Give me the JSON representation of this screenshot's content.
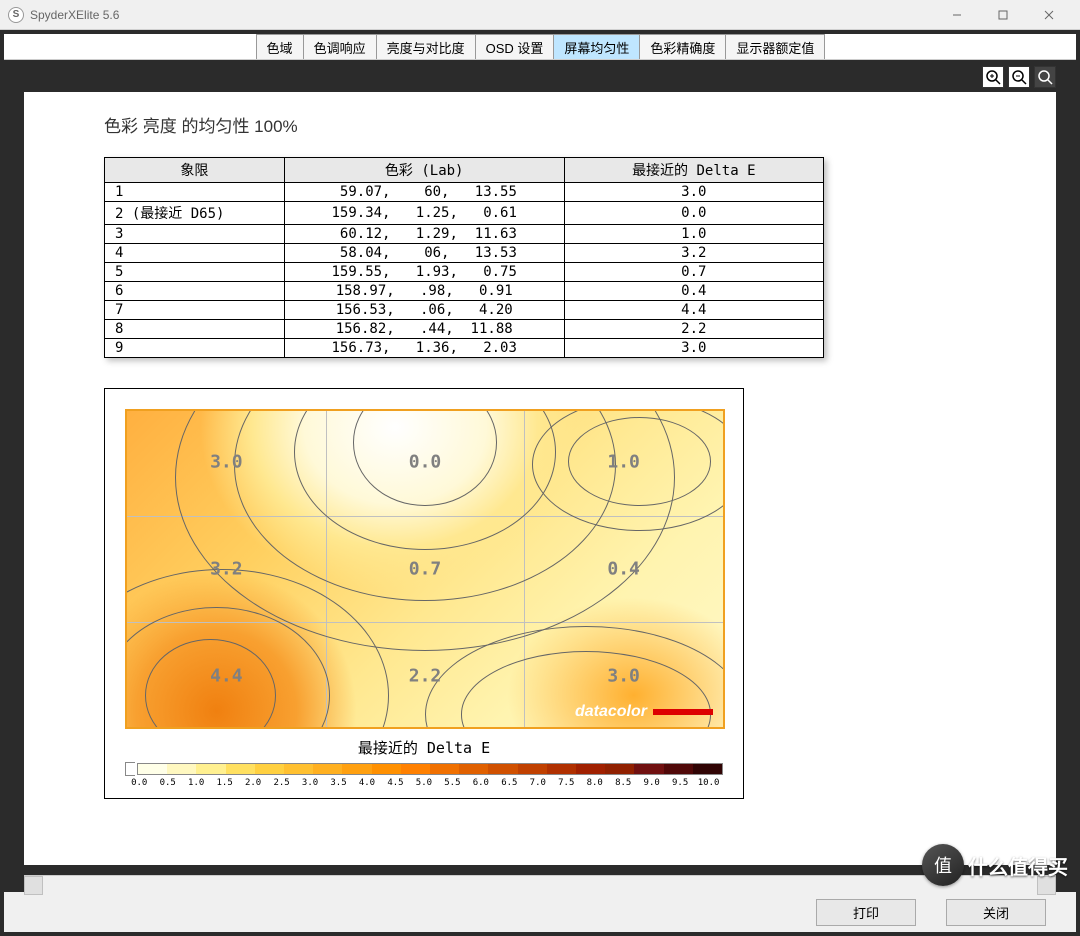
{
  "window": {
    "app_icon_letter": "S",
    "title": "SpyderXElite 5.6"
  },
  "tabs": [
    {
      "label": "色域",
      "active": false
    },
    {
      "label": "色调响应",
      "active": false
    },
    {
      "label": "亮度与对比度",
      "active": false
    },
    {
      "label": "OSD 设置",
      "active": false
    },
    {
      "label": "屏幕均匀性",
      "active": true
    },
    {
      "label": "色彩精确度",
      "active": false
    },
    {
      "label": "显示器额定值",
      "active": false
    }
  ],
  "page": {
    "title": "色彩 亮度 的均匀性 100%"
  },
  "table": {
    "headers": [
      "象限",
      "色彩 (Lab)",
      "最接近的 Delta E"
    ],
    "col_widths": [
      "180px",
      "280px",
      "260px"
    ],
    "rows": [
      {
        "q": "1",
        "lab": " 59.07,    60,   13.55",
        "de": "3.0"
      },
      {
        "q": "2 (最接近 D65)",
        "lab": "159.34,   1.25,   0.61",
        "de": "0.0"
      },
      {
        "q": "3",
        "lab": " 60.12,   1.29,  11.63",
        "de": "1.0"
      },
      {
        "q": "4",
        "lab": " 58.04,    06,   13.53",
        "de": "3.2"
      },
      {
        "q": "5",
        "lab": "159.55,   1.93,   0.75",
        "de": "0.7"
      },
      {
        "q": "6",
        "lab": "158.97,   .98,   0.91",
        "de": "0.4"
      },
      {
        "q": "7",
        "lab": "156.53,   .06,   4.20",
        "de": "4.4"
      },
      {
        "q": "8",
        "lab": "156.82,   .44,  11.88",
        "de": "2.2"
      },
      {
        "q": "9",
        "lab": "156.73,   1.36,   2.03",
        "de": "3.0"
      }
    ]
  },
  "heatmap": {
    "grid_values": [
      [
        "3.0",
        "0.0",
        "1.0"
      ],
      [
        "3.2",
        "0.7",
        "0.4"
      ],
      [
        "4.4",
        "2.2",
        "3.0"
      ]
    ],
    "cell_label_color": "#808080",
    "cell_label_fontsize": 18,
    "background_gradient_css": "radial-gradient(ellipse 260px 220px at 45% 5%, #ffffff 0%, #fff9d8 35%, #ffe890 55%, transparent 75%), radial-gradient(ellipse 200px 200px at 15% 95%, #f08010 0%, #f8a030 40%, transparent 70%), radial-gradient(ellipse 180px 140px at 85% 90%, #ffb030 0%, transparent 70%), linear-gradient(135deg, #ffb040 0%, #ffd060 30%, #ffe890 55%, #fff4b0 75%, #fff8c8 100%)",
    "contour_color": "#555555",
    "gridline_color": "#c0c0c0",
    "watermark_text": "datacolor",
    "watermark_color": "#ffffff",
    "watermark_bar_color": "#d00000",
    "title": "最接近的 Delta E",
    "legend": {
      "min": 0.0,
      "max": 10.0,
      "step": 0.5,
      "labels": [
        "0.0",
        "0.5",
        "1.0",
        "1.5",
        "2.0",
        "2.5",
        "3.0",
        "3.5",
        "4.0",
        "4.5",
        "5.0",
        "5.5",
        "6.0",
        "6.5",
        "7.0",
        "7.5",
        "8.0",
        "8.5",
        "9.0",
        "9.5",
        "10.0"
      ],
      "colors": [
        "#ffffe8",
        "#fff8c0",
        "#fff090",
        "#ffe060",
        "#ffd040",
        "#ffc030",
        "#ffb020",
        "#ffa010",
        "#ff9000",
        "#ff8000",
        "#f07000",
        "#e06000",
        "#d05000",
        "#c04000",
        "#b03000",
        "#a02000",
        "#902000",
        "#701010",
        "#500808",
        "#300404"
      ]
    }
  },
  "buttons": {
    "print": "打印",
    "close": "关闭"
  },
  "footer_watermark": {
    "icon_char": "值",
    "text": "什么值得买"
  }
}
